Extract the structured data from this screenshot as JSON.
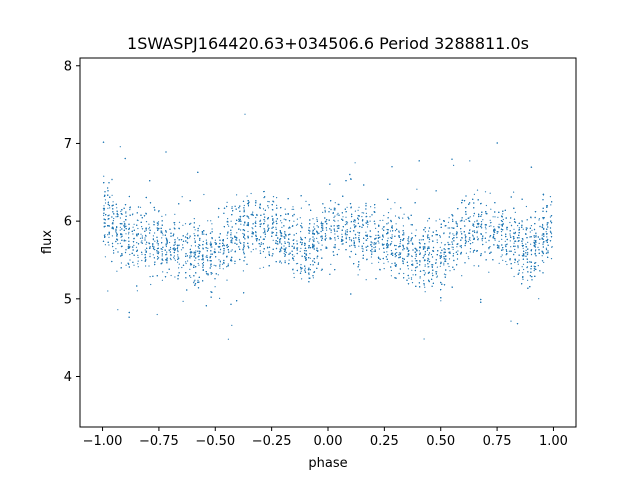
{
  "chart_data": {
    "type": "scatter",
    "title": "1SWASPJ164420.63+034506.6 Period 3288811.0s",
    "xlabel": "phase",
    "ylabel": "flux",
    "xlim": [
      -1.1,
      1.1
    ],
    "ylim": [
      3.35,
      8.1
    ],
    "xticks": [
      -1.0,
      -0.75,
      -0.5,
      -0.25,
      0.0,
      0.25,
      0.5,
      0.75,
      1.0
    ],
    "xtick_labels": [
      "−1.00",
      "−0.75",
      "−0.50",
      "−0.25",
      "0.00",
      "0.25",
      "0.50",
      "0.75",
      "1.00"
    ],
    "yticks": [
      4,
      5,
      6,
      7,
      8
    ],
    "ytick_labels": [
      "4",
      "5",
      "6",
      "7",
      "8"
    ],
    "grid": false,
    "marker_color": "#1f77b4",
    "profile_points": [
      [
        -1.0,
        6.1
      ],
      [
        -0.9,
        5.8
      ],
      [
        -0.8,
        5.8
      ],
      [
        -0.7,
        5.7
      ],
      [
        -0.6,
        5.55
      ],
      [
        -0.5,
        5.6
      ],
      [
        -0.4,
        5.85
      ],
      [
        -0.3,
        5.95
      ],
      [
        -0.2,
        5.8
      ],
      [
        -0.1,
        5.6
      ],
      [
        0.0,
        5.9
      ],
      [
        0.1,
        5.9
      ],
      [
        0.2,
        5.8
      ],
      [
        0.3,
        5.7
      ],
      [
        0.4,
        5.55
      ],
      [
        0.5,
        5.6
      ],
      [
        0.6,
        5.85
      ],
      [
        0.7,
        5.95
      ],
      [
        0.8,
        5.8
      ],
      [
        0.9,
        5.6
      ],
      [
        1.0,
        5.9
      ]
    ]
  }
}
